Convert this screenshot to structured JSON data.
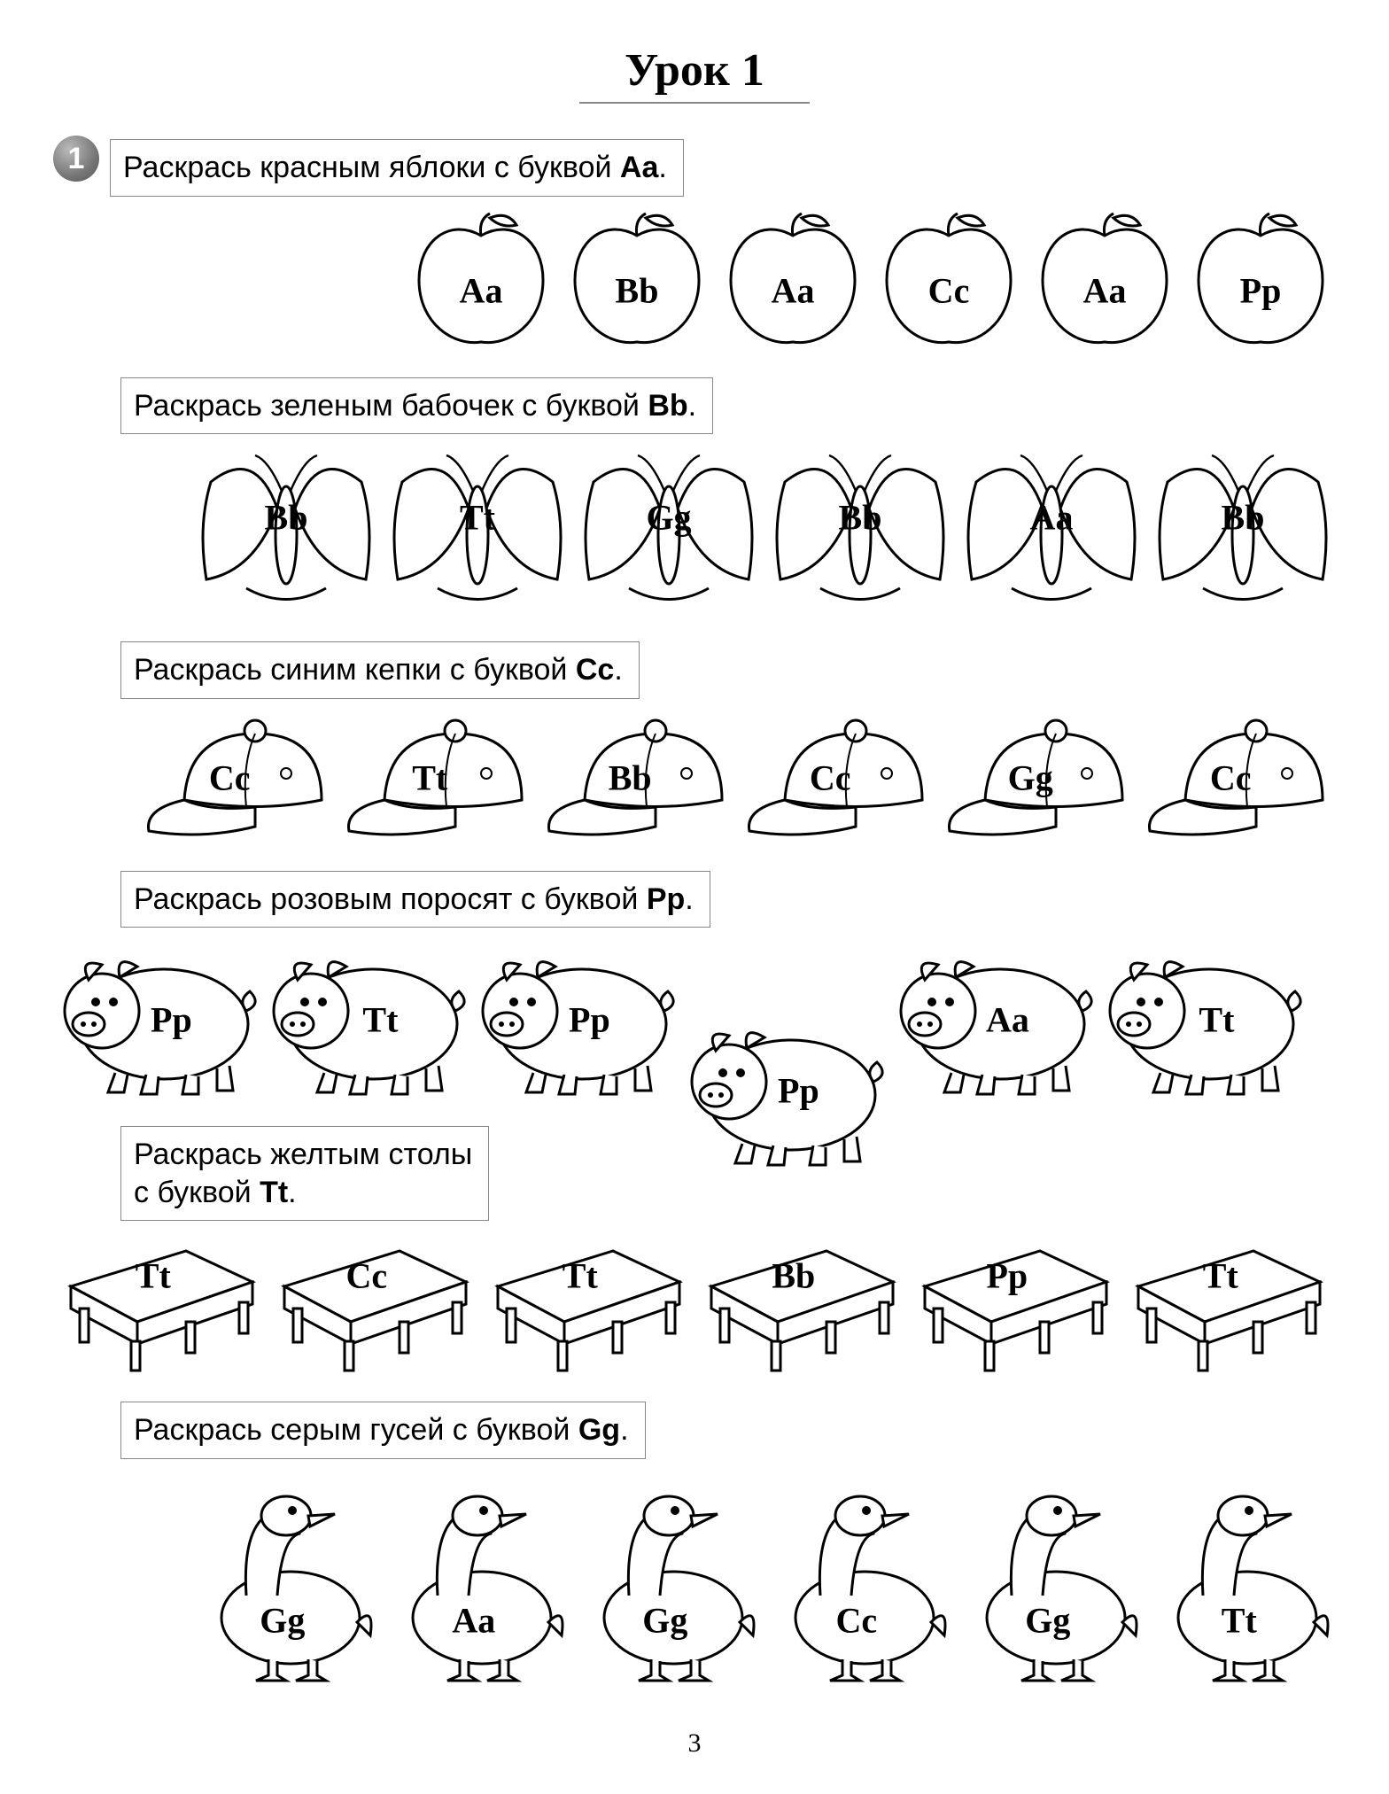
{
  "title": "Урок 1",
  "page_number": "3",
  "exercise_badge": "1",
  "styling": {
    "stroke": "#000000",
    "stroke_width": 3,
    "fill": "#ffffff",
    "label_font": "Times New Roman",
    "label_fontsize": 40,
    "instruction_fontsize": 34,
    "title_fontsize": 52,
    "badge_bg": "#888888",
    "border_color": "#888888"
  },
  "sections": [
    {
      "id": "apples",
      "instruction_prefix": "Раскрась красным яблоки с буквой ",
      "instruction_bold": "Aa",
      "instruction_suffix": ".",
      "shape": "apple",
      "items": [
        {
          "label": "Aa"
        },
        {
          "label": "Bb"
        },
        {
          "label": "Aa"
        },
        {
          "label": "Cc"
        },
        {
          "label": "Aa"
        },
        {
          "label": "Pp"
        }
      ]
    },
    {
      "id": "butterflies",
      "instruction_prefix": "Раскрась зеленым бабочек с буквой ",
      "instruction_bold": "Bb",
      "instruction_suffix": ".",
      "shape": "butterfly",
      "items": [
        {
          "label": "Bb"
        },
        {
          "label": "Tt"
        },
        {
          "label": "Gg"
        },
        {
          "label": "Bb"
        },
        {
          "label": "Aa"
        },
        {
          "label": "Bb"
        }
      ]
    },
    {
      "id": "caps",
      "instruction_prefix": "Раскрась  синим кепки  с буквой ",
      "instruction_bold": "Cc",
      "instruction_suffix": ".",
      "shape": "cap",
      "items": [
        {
          "label": "Cc"
        },
        {
          "label": "Tt"
        },
        {
          "label": "Bb"
        },
        {
          "label": "Cc"
        },
        {
          "label": "Gg"
        },
        {
          "label": "Cc"
        }
      ]
    },
    {
      "id": "pigs",
      "instruction_prefix": "Раскрась розовым поросят с буквой ",
      "instruction_bold": "Pp",
      "instruction_suffix": ".",
      "shape": "pig",
      "items": [
        {
          "label": "Pp"
        },
        {
          "label": "Tt"
        },
        {
          "label": "Pp"
        },
        {
          "label": "Pp",
          "offset": true
        },
        {
          "label": "Aa"
        },
        {
          "label": "Tt"
        }
      ]
    },
    {
      "id": "tables",
      "instruction_prefix": "Раскрась желтым столы\nс буквой ",
      "instruction_bold": "Tt",
      "instruction_suffix": ".",
      "shape": "table",
      "items": [
        {
          "label": "Tt"
        },
        {
          "label": "Cc"
        },
        {
          "label": "Tt"
        },
        {
          "label": "Bb"
        },
        {
          "label": "Pp"
        },
        {
          "label": "Tt"
        }
      ]
    },
    {
      "id": "geese",
      "instruction_prefix": "Раскрась серым гусей с буквой  ",
      "instruction_bold": "Gg",
      "instruction_suffix": ".",
      "shape": "goose",
      "items": [
        {
          "label": "Gg"
        },
        {
          "label": "Aa"
        },
        {
          "label": "Gg"
        },
        {
          "label": "Cc"
        },
        {
          "label": "Gg"
        },
        {
          "label": "Tt"
        }
      ]
    }
  ]
}
